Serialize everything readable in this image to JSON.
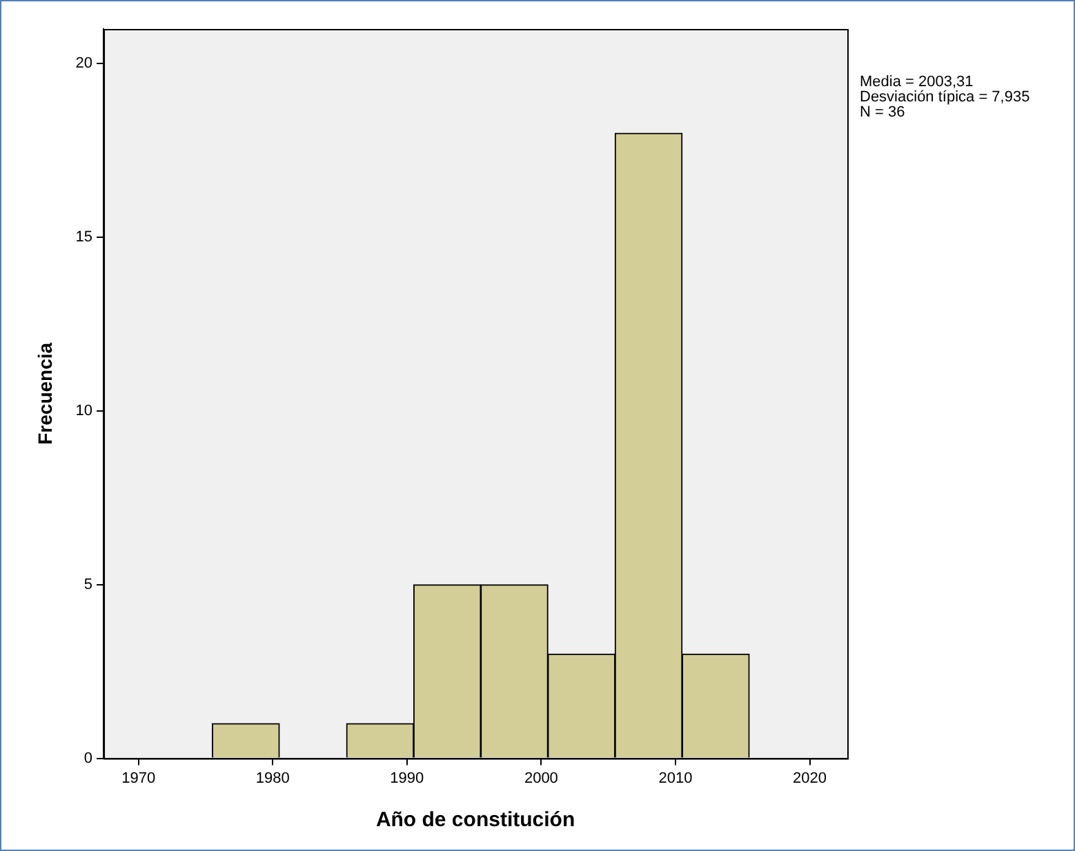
{
  "chart_data": {
    "type": "histogram",
    "xlabel": "Año de constitución",
    "ylabel": "Frecuencia",
    "bins": [
      1975.5,
      1980.5,
      1985.5,
      1990.5,
      1995.5,
      2000.5,
      2005.5,
      2010.5,
      2015.5
    ],
    "values": [
      1,
      0,
      1,
      5,
      5,
      3,
      18,
      3
    ],
    "color": "#d3ce97",
    "xlim": [
      1967.4,
      2022.8
    ],
    "xticks": [
      1970,
      1980,
      1990,
      2000,
      2010,
      2020
    ],
    "ylim": [
      0,
      21
    ],
    "yticks": [
      0,
      5,
      10,
      15,
      20
    ],
    "grid": false,
    "legend": false,
    "annotations": [
      "Media = 2003,31",
      "Desviación típica = 7,935",
      "N = 36"
    ]
  }
}
